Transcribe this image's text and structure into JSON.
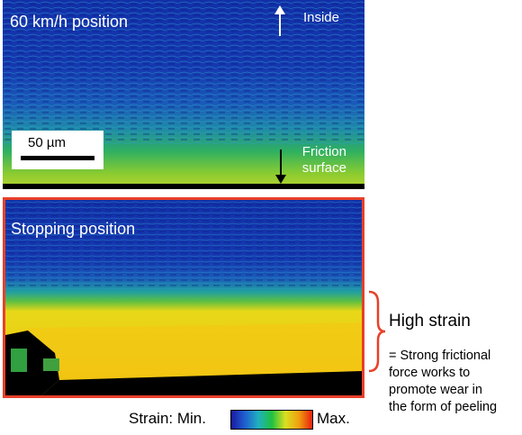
{
  "panels": {
    "top": {
      "title": "60 km/h position",
      "inside_label": "Inside",
      "friction_label_line1": "Friction",
      "friction_label_line2": "surface"
    },
    "bottom": {
      "title": "Stopping position",
      "border_color": "#e8402a"
    }
  },
  "scale_bar": {
    "label": "50 µm"
  },
  "annotation": {
    "heading": "High strain",
    "note_lines": [
      "= Strong frictional",
      "force works to",
      "promote wear in",
      "the form of peeling"
    ]
  },
  "legend": {
    "prefix": "Strain: Min.",
    "suffix": "Max.",
    "colors": [
      "#1a1aa0",
      "#1e5fd0",
      "#20b0c0",
      "#20c040",
      "#d8e020",
      "#f0a010",
      "#e82010"
    ]
  },
  "icons": {
    "up_arrow": "arrow-up-icon",
    "down_arrow": "arrow-down-icon",
    "bracket": "right-brace-icon"
  }
}
